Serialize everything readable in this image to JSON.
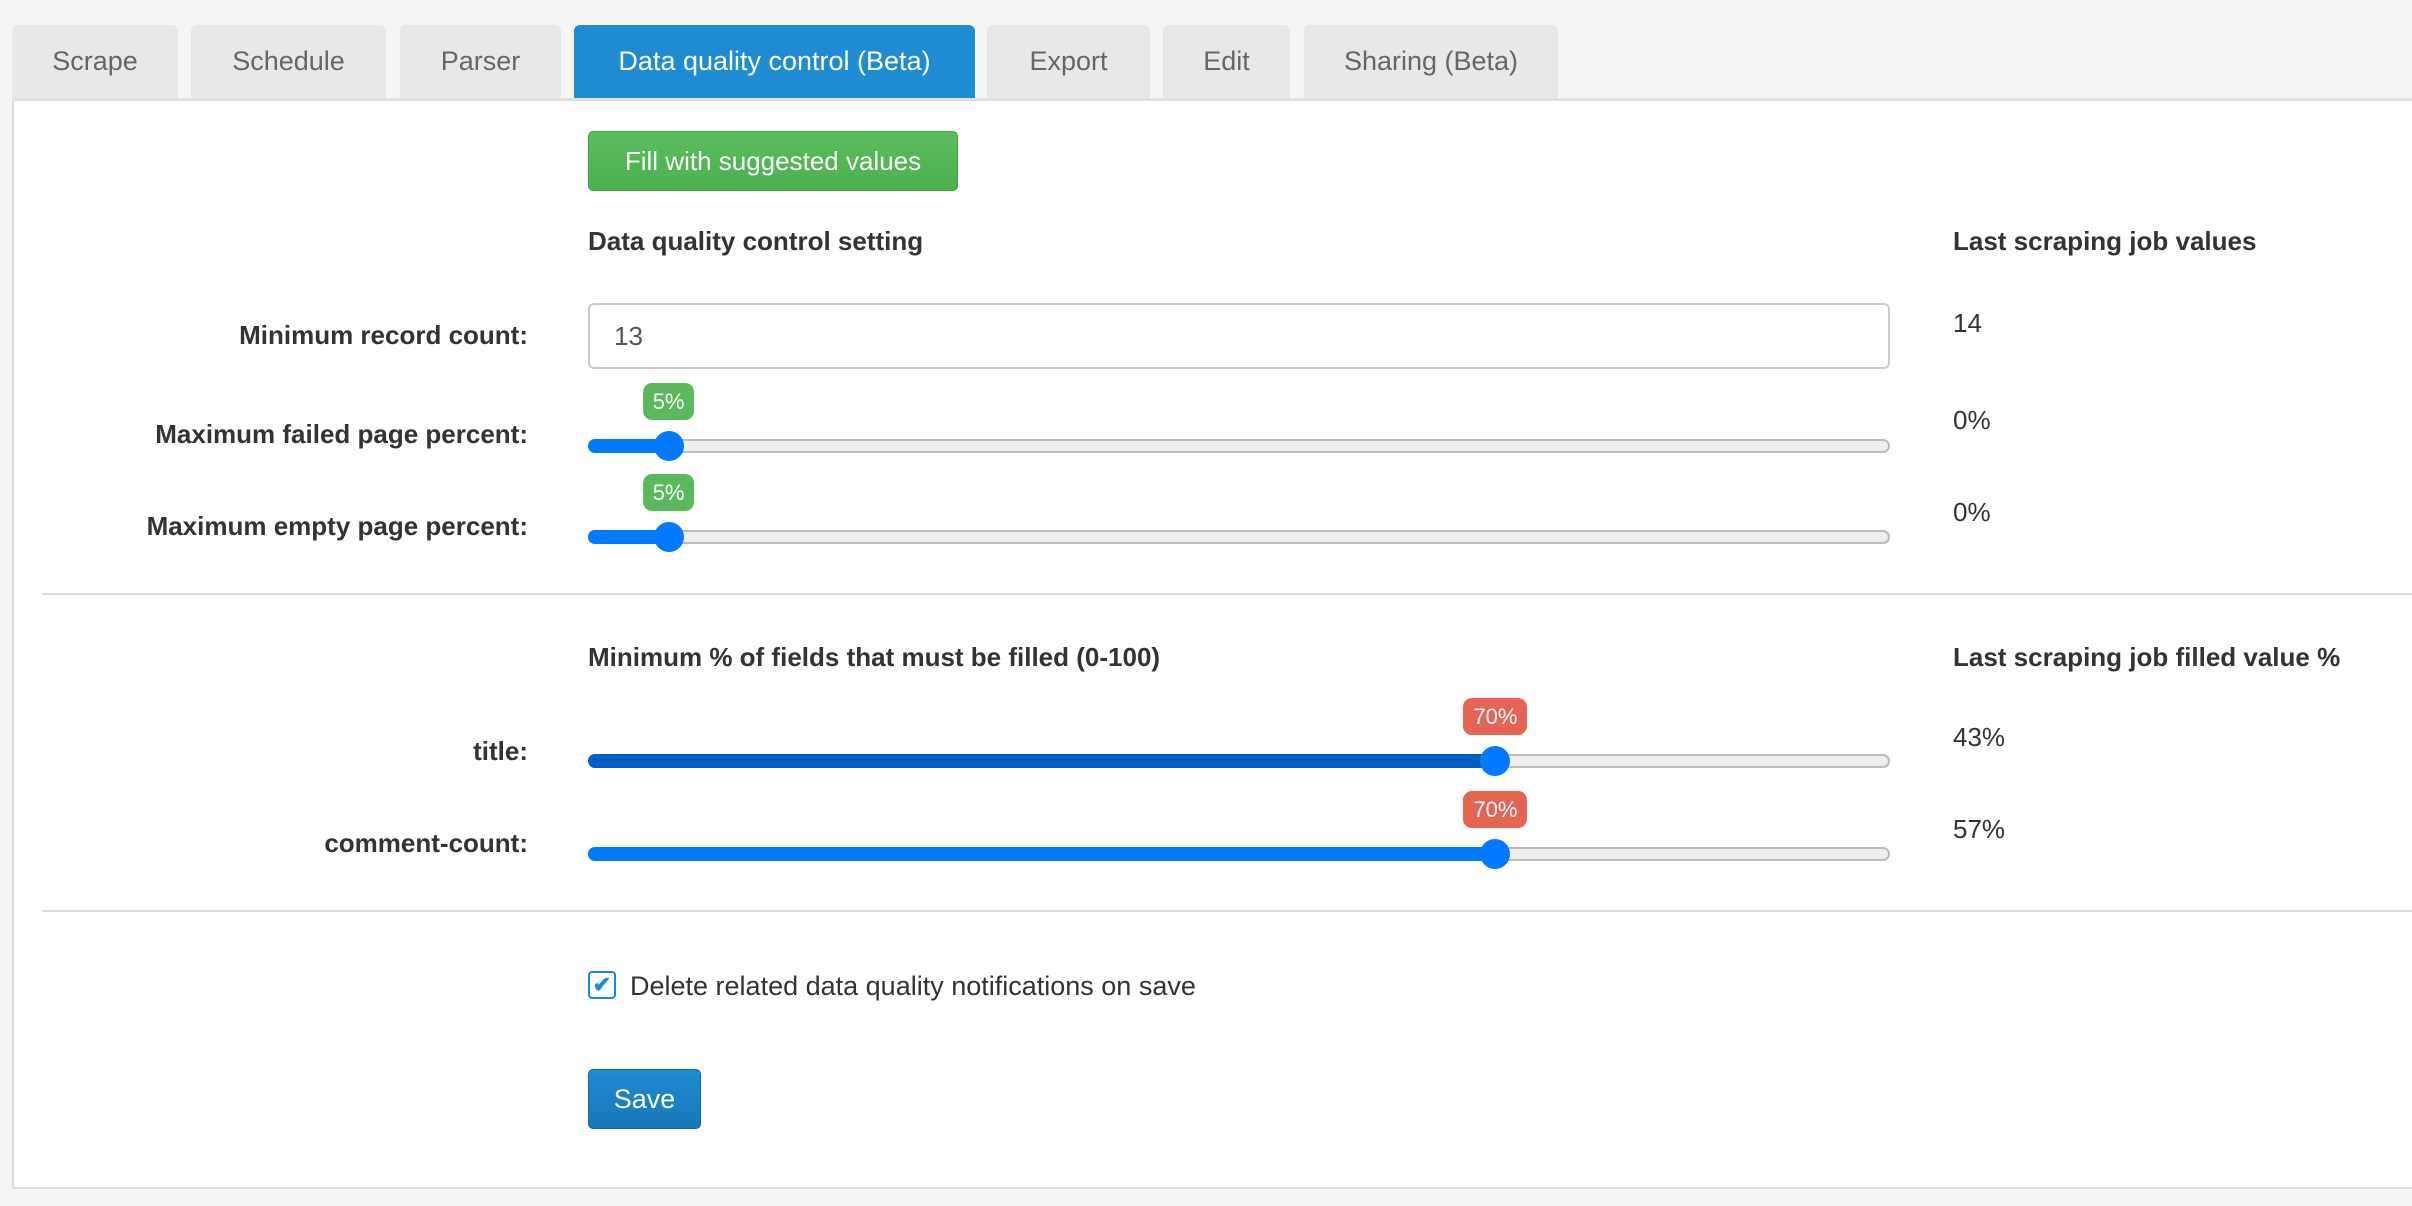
{
  "tabs": [
    {
      "label": "Scrape"
    },
    {
      "label": "Schedule"
    },
    {
      "label": "Parser"
    },
    {
      "label": "Data quality control (Beta)",
      "active": true
    },
    {
      "label": "Export"
    },
    {
      "label": "Edit"
    },
    {
      "label": "Sharing (Beta)"
    }
  ],
  "fill_button": "Fill with suggested values",
  "section1": {
    "heading": "Data quality control setting",
    "last_heading": "Last scraping job values",
    "min_record": {
      "label": "Minimum record count:",
      "value": "13",
      "last": "14"
    },
    "failed": {
      "label": "Maximum failed page percent:",
      "value": 5,
      "badge": "5%",
      "last": "0%"
    },
    "empty": {
      "label": "Maximum empty page percent:",
      "value": 5,
      "badge": "5%",
      "last": "0%"
    }
  },
  "section2": {
    "heading": "Minimum % of fields that must be filled (0-100)",
    "last_heading": "Last scraping job filled value %",
    "fields": [
      {
        "label": "title:",
        "value": 70,
        "badge": "70%",
        "last": "43%",
        "focused": true
      },
      {
        "label": "comment-count:",
        "value": 70,
        "badge": "70%",
        "last": "57%"
      }
    ]
  },
  "checkbox": {
    "label": "Delete related data quality notifications on save",
    "checked": true
  },
  "save_button": "Save",
  "colors": {
    "accent": "#1e8bd3",
    "success": "#5cb85c",
    "danger": "#e66454",
    "slider": "#007bff"
  }
}
